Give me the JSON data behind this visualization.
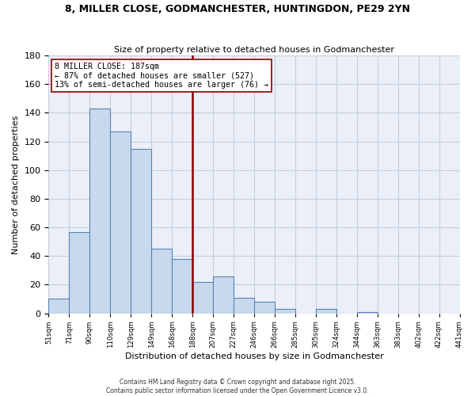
{
  "title": "8, MILLER CLOSE, GODMANCHESTER, HUNTINGDON, PE29 2YN",
  "subtitle": "Size of property relative to detached houses in Godmanchester",
  "xlabel": "Distribution of detached houses by size in Godmanchester",
  "ylabel": "Number of detached properties",
  "bar_values": [
    10,
    57,
    143,
    127,
    115,
    45,
    38,
    22,
    26,
    11,
    8,
    3,
    0,
    3,
    0,
    1
  ],
  "bin_labels": [
    "51sqm",
    "71sqm",
    "90sqm",
    "110sqm",
    "129sqm",
    "149sqm",
    "168sqm",
    "188sqm",
    "207sqm",
    "227sqm",
    "246sqm",
    "266sqm",
    "285sqm",
    "305sqm",
    "324sqm",
    "344sqm",
    "363sqm",
    "383sqm",
    "402sqm",
    "422sqm",
    "441sqm"
  ],
  "bar_color": "#c8d9ee",
  "bar_edge_color": "#5b82b4",
  "grid_color": "#c5cfe0",
  "bg_color": "#eaeff8",
  "vline_color": "#8b0000",
  "annotation_text": "8 MILLER CLOSE: 187sqm\n← 87% of detached houses are smaller (527)\n13% of semi-detached houses are larger (76) →",
  "annotation_box_edge": "#8b0000",
  "annotation_box_bg": "white",
  "ylim": [
    0,
    180
  ],
  "yticks": [
    0,
    20,
    40,
    60,
    80,
    100,
    120,
    140,
    160,
    180
  ],
  "footer1": "Contains HM Land Registry data © Crown copyright and database right 2025.",
  "footer2": "Contains public sector information licensed under the Open Government Licence v3.0."
}
